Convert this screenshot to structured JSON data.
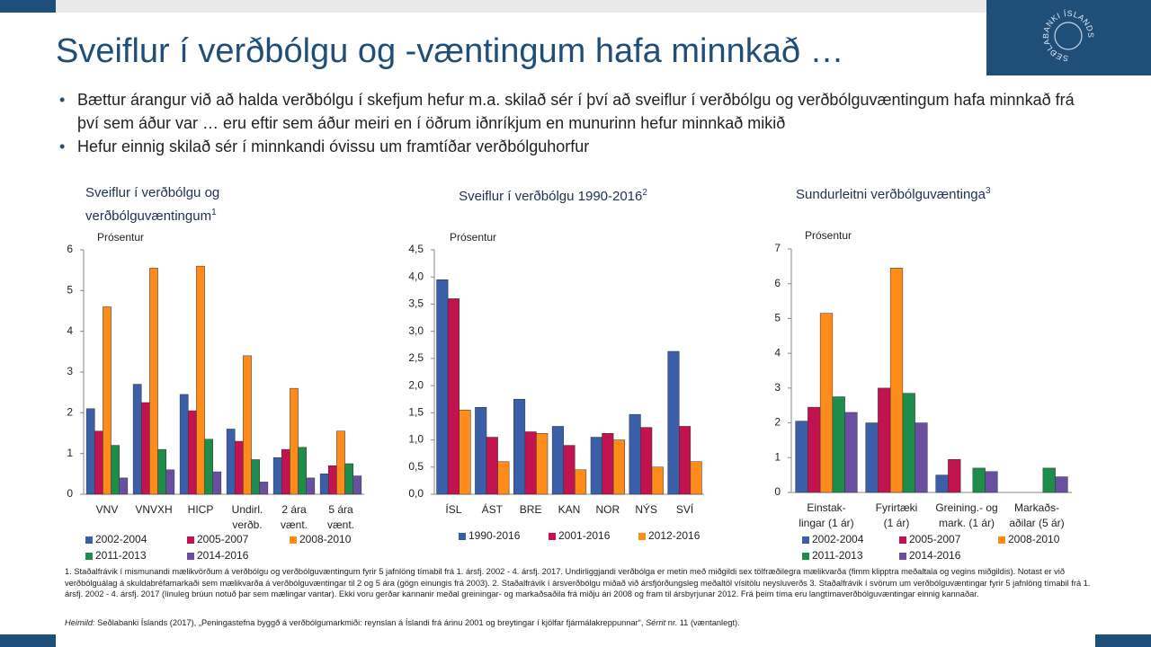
{
  "header": {
    "title": "Sveiflur í verðbólgu og -væntingum hafa minnkað …",
    "logo": "SEÐLABANKI ÍSLANDS"
  },
  "bullets": [
    "Bættur árangur við að halda verðbólgu í skefjum hefur m.a. skilað sér í því að sveiflur í verðbólgu og verðbólguvæntingum hafa minnkað frá því sem áður var … eru eftir sem áður meiri en í öðrum iðnríkjum en munurinn hefur minnkað mikið",
    "Hefur einnig skilað sér í minnkandi óvissu um framtíðar verðbólguhorfur"
  ],
  "chart_data": [
    {
      "type": "bar",
      "title": "Sveiflur í verðbólgu og verðbólguvæntingum",
      "title_sup": "1",
      "ylabel": "Prósentur",
      "categories": [
        [
          "VNV"
        ],
        [
          "VNVXH"
        ],
        [
          "HICP"
        ],
        [
          "Undirl.",
          "verðb."
        ],
        [
          "2 ára",
          "vænt."
        ],
        [
          "5 ára",
          "vænt."
        ]
      ],
      "series": [
        {
          "name": "2002-2004",
          "color": "#3a5fa8",
          "values": [
            2.1,
            2.7,
            2.45,
            1.6,
            0.9,
            0.5
          ]
        },
        {
          "name": "2005-2007",
          "color": "#c0134f",
          "values": [
            1.55,
            2.25,
            2.05,
            1.3,
            1.1,
            0.7
          ]
        },
        {
          "name": "2008-2010",
          "color": "#ff8c1a",
          "values": [
            4.6,
            5.55,
            5.6,
            3.4,
            2.6,
            1.55
          ]
        },
        {
          "name": "2011-2013",
          "color": "#1e8c4a",
          "values": [
            1.2,
            1.1,
            1.35,
            0.85,
            1.15,
            0.75
          ]
        },
        {
          "name": "2014-2016",
          "color": "#6a4fa0",
          "values": [
            0.4,
            0.6,
            0.55,
            0.3,
            0.4,
            0.45
          ]
        }
      ],
      "ylim": [
        0,
        6
      ],
      "yticks": [
        0,
        1,
        2,
        3,
        4,
        5,
        6
      ]
    },
    {
      "type": "bar",
      "title": "Sveiflur í verðbólgu 1990-2016",
      "title_sup": "2",
      "ylabel": "Prósentur",
      "categories": [
        [
          "ÍSL"
        ],
        [
          "ÁST"
        ],
        [
          "BRE"
        ],
        [
          "KAN"
        ],
        [
          "NOR"
        ],
        [
          "NÝS"
        ],
        [
          "SVÍ"
        ]
      ],
      "series": [
        {
          "name": "1990-2016",
          "color": "#3a5fa8",
          "values": [
            3.95,
            1.6,
            1.75,
            1.25,
            1.05,
            1.47,
            2.63
          ]
        },
        {
          "name": "2001-2016",
          "color": "#c0134f",
          "values": [
            3.6,
            1.05,
            1.15,
            0.9,
            1.12,
            1.23,
            1.25
          ]
        },
        {
          "name": "2012-2016",
          "color": "#ff8c1a",
          "values": [
            1.55,
            0.6,
            1.12,
            0.45,
            1.0,
            0.5,
            0.6
          ]
        }
      ],
      "ylim": [
        0,
        4.5
      ],
      "yticks": [
        {
          "value": 0,
          "label": "0,0"
        },
        {
          "value": 0.5,
          "label": "0,5"
        },
        {
          "value": 1,
          "label": "1,0"
        },
        {
          "value": 1.5,
          "label": "1,5"
        },
        {
          "value": 2,
          "label": "2,0"
        },
        {
          "value": 2.5,
          "label": "2,5"
        },
        {
          "value": 3,
          "label": "3,0"
        },
        {
          "value": 3.5,
          "label": "3,5"
        },
        {
          "value": 4,
          "label": "4,0"
        },
        {
          "value": 4.5,
          "label": "4,5"
        }
      ]
    },
    {
      "type": "bar",
      "title": "Sundurleitni verðbólguvæntinga",
      "title_sup": "3",
      "ylabel": "Prósentur",
      "categories": [
        [
          "Einstak-",
          "lingar (1 ár)"
        ],
        [
          "Fyrirtæki",
          "(1 ár)"
        ],
        [
          "Greining.- og",
          "mark. (1 ár)"
        ],
        [
          "Markaðs-",
          "aðilar (5 ár)"
        ]
      ],
      "series": [
        {
          "name": "2002-2004",
          "color": "#3a5fa8",
          "values": [
            2.05,
            2.0,
            0.5,
            null
          ]
        },
        {
          "name": "2005-2007",
          "color": "#c0134f",
          "values": [
            2.45,
            3.0,
            0.95,
            null
          ]
        },
        {
          "name": "2008-2010",
          "color": "#ff8c1a",
          "values": [
            5.15,
            6.45,
            null,
            null
          ]
        },
        {
          "name": "2011-2013",
          "color": "#1e8c4a",
          "values": [
            2.75,
            2.85,
            0.7,
            0.7
          ]
        },
        {
          "name": "2014-2016",
          "color": "#6a4fa0",
          "values": [
            2.3,
            2.0,
            0.6,
            0.45
          ]
        }
      ],
      "ylim": [
        0,
        7
      ],
      "yticks": [
        0,
        1,
        2,
        3,
        4,
        5,
        6,
        7
      ]
    }
  ],
  "footnote": "1. Staðalfrávik í mismunandi mælikvörðum á verðbólgu og verðbólguvæntingum fyrir 5 jafnlöng tímabil frá 1. ársfj. 2002 - 4. ársfj. 2017. Undirliggjandi verðbólga er metin með miðgildi sex tölfræðilegra mælikvarða (fimm klipptra meðaltala og vegins miðgildis). Notast er við verðbólguálag á skuldabréfamarkaði sem mælikvarða á verðbólguvæntingar til 2 og 5 ára (gögn einungis frá 2003). 2. Staðalfrávik í ársverðbólgu miðað við ársfjórðungsleg meðaltöl vísitölu neysluverðs 3. Staðalfrávik í svörum um verðbólguvæntingar fyrir 5 jafnlöng tímabil frá 1. ársfj. 2002 - 4. ársfj. 2017 (línuleg brúun notuð þar sem mælingar vantar). Ekki voru gerðar kannanir meðal greiningar- og markaðsaðila frá miðju ári 2008 og fram til ársbyrjunar 2012. Frá þeim tíma eru langtímaverðbólguvæntingar einnig kannaðar.",
  "source": {
    "label": "Heimild:",
    "text": " Seðlabanki Íslands (2017), „Peningastefna byggð á verðbólgumarkmiði: reynslan á Íslandi frá árinu 2001 og breytingar í kjölfar fjármálakreppunnar“, ",
    "series_name": "Sérrit",
    "end": " nr. 11 (væntanlegt)."
  }
}
